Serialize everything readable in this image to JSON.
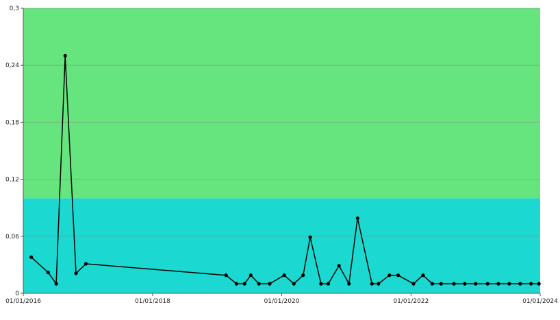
{
  "chart_data": {
    "type": "line",
    "title": "",
    "xlabel": "",
    "ylabel": "",
    "xlim": [
      "2016-01-01",
      "2024-01-01"
    ],
    "ylim": [
      0,
      0.3
    ],
    "x_tick_labels": [
      "01/01/2016",
      "01/01/2018",
      "01/01/2020",
      "01/01/2022",
      "01/01/2024"
    ],
    "x_tick_dates": [
      "2016-01-01",
      "2018-01-01",
      "2020-01-01",
      "2022-01-01",
      "2024-01-01"
    ],
    "y_tick_labels": [
      "0",
      "0,06",
      "0,12",
      "0,18",
      "0,24",
      "0,3"
    ],
    "y_tick_values": [
      0,
      0.06,
      0.12,
      0.18,
      0.24,
      0.3
    ],
    "grid": "horizontal",
    "bands": [
      {
        "from": 0,
        "to": 0.1,
        "color": "#1bd9d0"
      },
      {
        "from": 0.1,
        "to": 0.3,
        "color": "#66e57f"
      }
    ],
    "line_color": "#000000",
    "x": [
      "2016-02-15",
      "2016-05-20",
      "2016-07-05",
      "2016-08-25",
      "2016-10-25",
      "2016-12-20",
      "2019-02-20",
      "2019-04-20",
      "2019-06-05",
      "2019-07-10",
      "2019-08-25",
      "2019-10-25",
      "2020-01-15",
      "2020-03-10",
      "2020-05-01",
      "2020-06-10",
      "2020-08-10",
      "2020-09-20",
      "2020-11-20",
      "2021-01-15",
      "2021-03-05",
      "2021-05-25",
      "2021-07-01",
      "2021-09-01",
      "2021-10-20",
      "2022-01-15",
      "2022-03-10",
      "2022-05-01",
      "2022-06-20",
      "2022-09-01",
      "2022-11-01",
      "2023-01-01",
      "2023-03-10",
      "2023-05-10",
      "2023-07-10",
      "2023-09-10",
      "2023-11-10",
      "2023-12-25"
    ],
    "y": [
      0.038,
      0.022,
      0.01,
      0.25,
      0.021,
      0.031,
      0.019,
      0.01,
      0.01,
      0.019,
      0.01,
      0.01,
      0.019,
      0.01,
      0.019,
      0.059,
      0.01,
      0.01,
      0.029,
      0.01,
      0.079,
      0.01,
      0.01,
      0.019,
      0.019,
      0.01,
      0.019,
      0.01,
      0.01,
      0.01,
      0.01,
      0.01,
      0.01,
      0.01,
      0.01,
      0.01,
      0.01,
      0.01
    ]
  }
}
